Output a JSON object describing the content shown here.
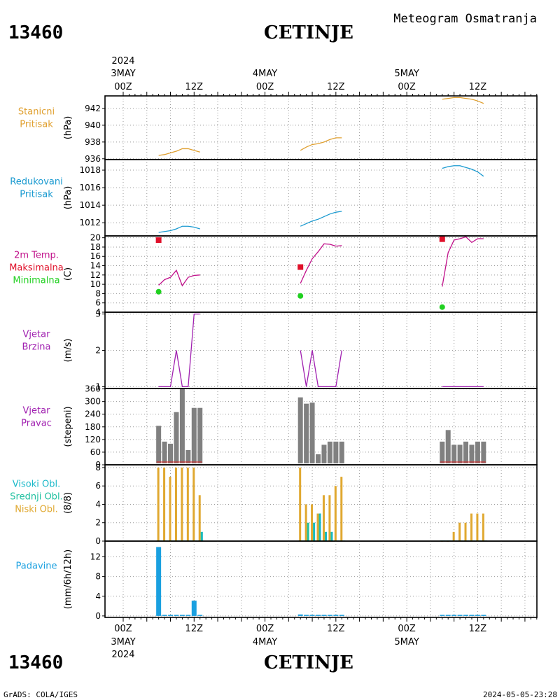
{
  "header": {
    "station_id": "13460",
    "station_name": "CETINJE",
    "title": "Meteogram Osmatranja"
  },
  "footer": {
    "credit": "GrADS: COLA/IGES",
    "timestamp": "2024-05-05-23:28"
  },
  "time_axis": {
    "top": [
      {
        "hour": "00Z",
        "day": "3MAY",
        "year": "2024"
      },
      {
        "hour": "12Z"
      },
      {
        "hour": "00Z",
        "day": "4MAY"
      },
      {
        "hour": "12Z"
      },
      {
        "hour": "00Z",
        "day": "5MAY"
      },
      {
        "hour": "12Z"
      }
    ],
    "bottom": [
      {
        "hour": "00Z",
        "day": "3MAY",
        "year": "2024"
      },
      {
        "hour": "12Z"
      },
      {
        "hour": "00Z",
        "day": "4MAY"
      },
      {
        "hour": "12Z"
      },
      {
        "hour": "00Z",
        "day": "5MAY"
      },
      {
        "hour": "12Z"
      }
    ]
  },
  "colors": {
    "station_pressure": "#e0a030",
    "reduced_pressure": "#1a9ad0",
    "temperature": "#c0108a",
    "max_temp": "#e0102a",
    "min_temp": "#20d020",
    "wind": "#a020b0",
    "wind_dir": "#808080",
    "cloud_high": "#18b8c8",
    "cloud_mid": "#20c0a0",
    "cloud_low": "#e0a830",
    "precip": "#1aa0e0"
  },
  "chart_data": [
    {
      "type": "line",
      "id": "station_pressure",
      "labels": [
        "Stanicni",
        "Pritisak"
      ],
      "ylabel": "(hPa)",
      "ylim": [
        935.9,
        943.5
      ],
      "yticks": [
        936,
        938,
        940,
        942
      ],
      "series": [
        {
          "segments": [
            {
              "x": [
                6,
                7,
                8,
                9,
                10,
                11,
                12,
                13
              ],
              "y": [
                936.4,
                936.5,
                936.7,
                936.9,
                937.2,
                937.2,
                937.0,
                936.8
              ]
            },
            {
              "x": [
                30,
                31,
                32,
                33,
                34,
                35,
                36,
                37
              ],
              "y": [
                937.0,
                937.4,
                937.7,
                937.8,
                938.0,
                938.3,
                938.5,
                938.5
              ]
            },
            {
              "x": [
                54,
                55,
                56,
                57,
                58,
                59,
                60,
                61
              ],
              "y": [
                943.1,
                943.2,
                943.3,
                943.3,
                943.2,
                943.1,
                942.9,
                942.6
              ]
            }
          ]
        }
      ]
    },
    {
      "type": "line",
      "id": "reduced_pressure",
      "labels": [
        "Redukovani",
        "Pritisak"
      ],
      "ylabel": "(hPa)",
      "ylim": [
        1010.5,
        1019.2
      ],
      "yticks": [
        1012,
        1014,
        1016,
        1018
      ],
      "series": [
        {
          "segments": [
            {
              "x": [
                6,
                7,
                8,
                9,
                10,
                11,
                12,
                13
              ],
              "y": [
                1010.9,
                1011.0,
                1011.1,
                1011.3,
                1011.6,
                1011.6,
                1011.5,
                1011.3
              ]
            },
            {
              "x": [
                30,
                31,
                32,
                33,
                34,
                35,
                36,
                37
              ],
              "y": [
                1011.6,
                1011.9,
                1012.2,
                1012.4,
                1012.7,
                1013.0,
                1013.2,
                1013.3
              ]
            },
            {
              "x": [
                54,
                55,
                56,
                57,
                58,
                59,
                60,
                61
              ],
              "y": [
                1018.2,
                1018.4,
                1018.5,
                1018.5,
                1018.3,
                1018.1,
                1017.8,
                1017.3
              ]
            }
          ]
        }
      ]
    },
    {
      "type": "line",
      "id": "temperature",
      "labels": [
        "2m Temp.",
        "Maksimalna",
        "Minimalna"
      ],
      "ylabel": "(C)",
      "ylim": [
        4,
        20.4
      ],
      "yticks": [
        4,
        6,
        8,
        10,
        12,
        14,
        16,
        18,
        20
      ],
      "series": [
        {
          "segments": [
            {
              "x": [
                6,
                7,
                8,
                9,
                10,
                11,
                12,
                13
              ],
              "y": [
                9.8,
                11.0,
                11.5,
                13.0,
                9.7,
                11.5,
                11.9,
                12.0
              ]
            },
            {
              "x": [
                30,
                31,
                32,
                33,
                34,
                35,
                36,
                37
              ],
              "y": [
                10.2,
                13.0,
                15.5,
                17.0,
                18.7,
                18.6,
                18.2,
                18.3
              ]
            },
            {
              "x": [
                54,
                55,
                56,
                57,
                58,
                59,
                60,
                61
              ],
              "y": [
                9.5,
                16.8,
                19.5,
                19.8,
                20.2,
                19.0,
                19.8,
                19.8
              ]
            }
          ]
        }
      ],
      "max_markers": {
        "x": [
          6,
          30,
          54
        ],
        "y": [
          19.5,
          13.7,
          19.7
        ]
      },
      "min_markers": {
        "x": [
          6,
          30,
          54
        ],
        "y": [
          8.4,
          7.5,
          5.1
        ]
      }
    },
    {
      "type": "line",
      "id": "wind_speed",
      "labels": [
        "Vjetar",
        "Brzina"
      ],
      "ylabel": "(m/s)",
      "ylim": [
        0.95,
        3.05
      ],
      "yticks": [
        1,
        2,
        3
      ],
      "series": [
        {
          "segments": [
            {
              "x": [
                6,
                7,
                8,
                9,
                10,
                11,
                12,
                13
              ],
              "y": [
                1,
                1,
                1,
                2,
                1,
                1,
                3,
                3
              ]
            },
            {
              "x": [
                30,
                31,
                32,
                33,
                34,
                35,
                36,
                37
              ],
              "y": [
                2,
                1,
                2,
                1,
                1,
                1,
                1,
                2
              ]
            },
            {
              "x": [
                54,
                55,
                56,
                57,
                58,
                59,
                60,
                61
              ],
              "y": [
                1,
                1,
                1,
                1,
                1,
                1,
                1,
                1
              ]
            }
          ]
        }
      ]
    },
    {
      "type": "bar",
      "id": "wind_direction",
      "labels": [
        "Vjetar",
        "Pravac"
      ],
      "ylabel": "(stepeni)",
      "ylim": [
        0,
        362
      ],
      "yticks": [
        0,
        60,
        120,
        180,
        240,
        300,
        360
      ],
      "x": [
        6,
        7,
        8,
        9,
        10,
        11,
        12,
        13,
        30,
        31,
        32,
        33,
        34,
        35,
        36,
        37,
        54,
        55,
        56,
        57,
        58,
        59,
        60,
        61
      ],
      "values": [
        185,
        110,
        100,
        250,
        360,
        70,
        270,
        270,
        320,
        290,
        295,
        50,
        95,
        110,
        110,
        110,
        110,
        165,
        95,
        95,
        110,
        95,
        110,
        110
      ]
    },
    {
      "type": "bar",
      "id": "cloud_cover",
      "labels": [
        "Visoki Obl.",
        "Srednji Obl.",
        "Niski Obl."
      ],
      "ylabel": "(8/8)",
      "ylim": [
        0,
        8.3
      ],
      "yticks": [
        0,
        2,
        4,
        6,
        8
      ],
      "x": [
        6,
        7,
        8,
        9,
        10,
        11,
        12,
        13,
        30,
        31,
        32,
        33,
        34,
        35,
        36,
        37,
        54,
        55,
        56,
        57,
        58,
        59,
        60,
        61
      ],
      "series": [
        {
          "name": "Visoki Obl.",
          "values": [
            0,
            0,
            0,
            0,
            0,
            0,
            0,
            1,
            0,
            0,
            2,
            3,
            1,
            1,
            0,
            0,
            0,
            0,
            0,
            0,
            0,
            0,
            0,
            0
          ]
        },
        {
          "name": "Srednji Obl.",
          "values": [
            0,
            0,
            0,
            0,
            0,
            0,
            0,
            1,
            0,
            2,
            2,
            3,
            1,
            1,
            0,
            0,
            0,
            0,
            0,
            0,
            0,
            0,
            0,
            0
          ]
        },
        {
          "name": "Niski Obl.",
          "values": [
            8,
            8,
            7,
            8,
            8,
            8,
            8,
            5,
            8,
            4,
            4,
            3,
            5,
            5,
            6,
            7,
            0,
            0,
            1,
            2,
            2,
            3,
            3,
            3
          ]
        }
      ]
    },
    {
      "type": "bar",
      "id": "precipitation",
      "labels": [
        "Padavine"
      ],
      "ylabel": "(mm/6h/12h)",
      "ylim": [
        -0.3,
        15.2
      ],
      "yticks": [
        0,
        4,
        8,
        12
      ],
      "x": [
        6,
        7,
        8,
        9,
        10,
        11,
        12,
        13,
        30,
        31,
        32,
        33,
        34,
        35,
        36,
        37,
        54,
        55,
        56,
        57,
        58,
        59,
        60,
        61
      ],
      "values": [
        14,
        0.1,
        0.1,
        0.1,
        0.1,
        0.1,
        3.1,
        0.1,
        0.3,
        0.1,
        0.1,
        0.1,
        0.1,
        0.1,
        0.1,
        0.1,
        0.1,
        0.1,
        0.1,
        0.1,
        0.1,
        0.1,
        0.1,
        0.1
      ]
    }
  ]
}
